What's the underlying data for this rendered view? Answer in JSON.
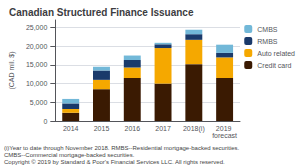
{
  "chart_data": {
    "type": "bar",
    "title": "Canadian Structured Finance Issuance",
    "categories": [
      "2014",
      "2015",
      "2016",
      "2017",
      "2018(i)",
      "2019 forecast"
    ],
    "series": [
      {
        "name": "Credit card",
        "color": "#3a1a02",
        "values": [
          2200,
          8500,
          11500,
          10000,
          15200,
          11500
        ]
      },
      {
        "name": "Auto related",
        "color": "#f5a800",
        "values": [
          1000,
          2500,
          2800,
          9500,
          6500,
          5500
        ]
      },
      {
        "name": "RMBS",
        "color": "#1a3a6b",
        "values": [
          1500,
          2500,
          2000,
          1000,
          1500,
          1200
        ]
      },
      {
        "name": "CMBS",
        "color": "#72b8d8",
        "values": [
          1200,
          1000,
          1200,
          400,
          1200,
          2200
        ]
      }
    ],
    "stacked": true,
    "ylabel": "(CAD mil. $)",
    "ylim": [
      0,
      27000
    ],
    "yticks": [
      0,
      {
        "value": 5000,
        "label": "5,000"
      },
      {
        "value": 10000,
        "label": "10,000"
      },
      {
        "value": 15000,
        "label": "15,000"
      },
      {
        "value": 20000,
        "label": "20,000"
      },
      {
        "value": 25000,
        "label": "25,000"
      }
    ],
    "grid": true,
    "legend": "right",
    "annotations": [
      "(i)Year to date through November 2018. RMBS--Residential mortgage-backed securities.",
      "CMBS--Commercial mortgage-backed securities.",
      "Copyright © 2019 by Standard & Poor's Financial Services LLC. All rights reserved."
    ]
  }
}
